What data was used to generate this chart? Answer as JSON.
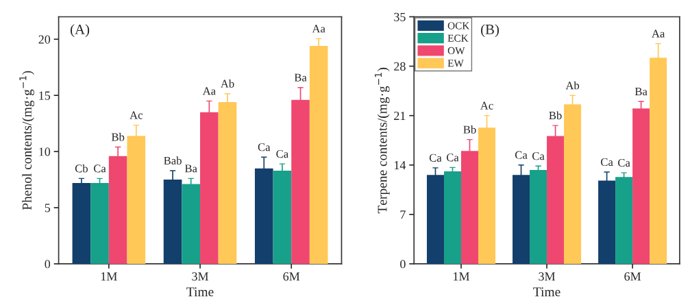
{
  "chart_data": [
    {
      "type": "bar",
      "title": "(A)",
      "xlabel": "Time",
      "ylabel": "Phenol contents/(mg·g$^{−1}$)",
      "categories": [
        "1M",
        "3M",
        "6M"
      ],
      "ylim": [
        0,
        22
      ],
      "yticks": [
        0,
        5,
        10,
        15,
        20
      ],
      "grid": false,
      "legend": false,
      "series": [
        {
          "color": "#123f6b",
          "values": [
            7.2,
            7.5,
            8.5
          ],
          "errors": [
            0.4,
            0.8,
            1.0
          ],
          "value_labels": [
            "Cb",
            "Bab",
            "Ca"
          ]
        },
        {
          "color": "#17a08a",
          "values": [
            7.2,
            7.1,
            8.3
          ],
          "errors": [
            0.4,
            0.5,
            0.6
          ],
          "value_labels": [
            "Ca",
            "Ba",
            "Ca"
          ]
        },
        {
          "color": "#ef476f",
          "values": [
            9.6,
            13.5,
            14.6
          ],
          "errors": [
            0.8,
            1.0,
            1.1
          ],
          "value_labels": [
            "Bb",
            "Aa",
            "Ba"
          ]
        },
        {
          "color": "#ffc857",
          "values": [
            11.4,
            14.4,
            19.4
          ],
          "errors": [
            0.95,
            0.75,
            0.65
          ],
          "value_labels": [
            "Ac",
            "Ab",
            "Aa"
          ]
        }
      ]
    },
    {
      "type": "bar",
      "title": "(B)",
      "xlabel": "Time",
      "ylabel": "Terpene contents/(mg·g$^{−1}$)",
      "categories": [
        "1M",
        "3M",
        "6M"
      ],
      "ylim": [
        0,
        35
      ],
      "yticks": [
        0,
        7,
        14,
        21,
        28,
        35
      ],
      "grid": false,
      "legend": "top left",
      "series": [
        {
          "name": "OCK",
          "color": "#123f6b",
          "values": [
            12.6,
            12.6,
            11.8
          ],
          "errors": [
            1.0,
            1.4,
            1.2
          ],
          "value_labels": [
            "Ca",
            "Ca",
            "Ca"
          ]
        },
        {
          "name": "ECK",
          "color": "#17a08a",
          "values": [
            13.1,
            13.3,
            12.3
          ],
          "errors": [
            0.55,
            0.55,
            0.6
          ],
          "value_labels": [
            "Ca",
            "Ca",
            "Ca"
          ]
        },
        {
          "name": "OW",
          "color": "#ef476f",
          "values": [
            16.0,
            18.1,
            22.0
          ],
          "errors": [
            1.6,
            1.5,
            1.0
          ],
          "value_labels": [
            "Bb",
            "Bb",
            "Ba"
          ]
        },
        {
          "name": "EW",
          "color": "#ffc857",
          "values": [
            19.3,
            22.6,
            29.2
          ],
          "errors": [
            1.7,
            1.25,
            2.0
          ],
          "value_labels": [
            "Ac",
            "Ab",
            "Aa"
          ]
        }
      ]
    }
  ]
}
